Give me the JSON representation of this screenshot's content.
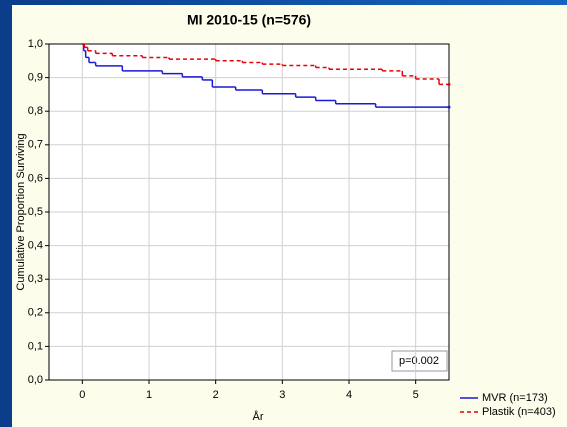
{
  "chart_data": {
    "type": "step",
    "title": "MI 2010-15 (n=576)",
    "xlabel": "År",
    "ylabel": "Cumulative Proportion Surviving",
    "annotation": "p=0.002",
    "xlim": [
      -0.5,
      5.5
    ],
    "xticks": [
      0,
      1,
      2,
      3,
      4,
      5
    ],
    "ylim": [
      0,
      1
    ],
    "yticks": [
      {
        "value": 0,
        "label": "0,0"
      },
      {
        "value": 0.1,
        "label": "0,1"
      },
      {
        "value": 0.2,
        "label": "0,2"
      },
      {
        "value": 0.3,
        "label": "0,3"
      },
      {
        "value": 0.4,
        "label": "0,4"
      },
      {
        "value": 0.5,
        "label": "0,5"
      },
      {
        "value": 0.6,
        "label": "0,6"
      },
      {
        "value": 0.7,
        "label": "0,7"
      },
      {
        "value": 0.8,
        "label": "0,8"
      },
      {
        "value": 0.9,
        "label": "0,9"
      },
      {
        "value": 1,
        "label": "1,0"
      }
    ],
    "grid": true,
    "legend": "bottom-right",
    "series": [
      {
        "name": "MVR (n=173)",
        "color": "#1a1ad6",
        "dash": false,
        "x": [
          0,
          0.02,
          0.05,
          0.1,
          0.2,
          0.6,
          1.2,
          1.5,
          1.8,
          1.95,
          2.3,
          2.7,
          3.2,
          3.5,
          3.8,
          4.4,
          5.5
        ],
        "values": [
          1,
          0.98,
          0.96,
          0.945,
          0.935,
          0.92,
          0.912,
          0.902,
          0.893,
          0.872,
          0.863,
          0.852,
          0.842,
          0.832,
          0.822,
          0.812,
          0.812
        ]
      },
      {
        "name": "Plastik (n=403)",
        "color": "#e8000b",
        "dash": true,
        "x": [
          0,
          0.03,
          0.08,
          0.2,
          0.45,
          0.9,
          1.3,
          2.0,
          2.4,
          2.7,
          3.0,
          3.5,
          3.7,
          4.5,
          4.8,
          5.0,
          5.35,
          5.5
        ],
        "values": [
          1,
          0.99,
          0.98,
          0.972,
          0.965,
          0.96,
          0.955,
          0.95,
          0.945,
          0.94,
          0.936,
          0.93,
          0.925,
          0.92,
          0.905,
          0.896,
          0.88,
          0.88
        ]
      }
    ]
  }
}
